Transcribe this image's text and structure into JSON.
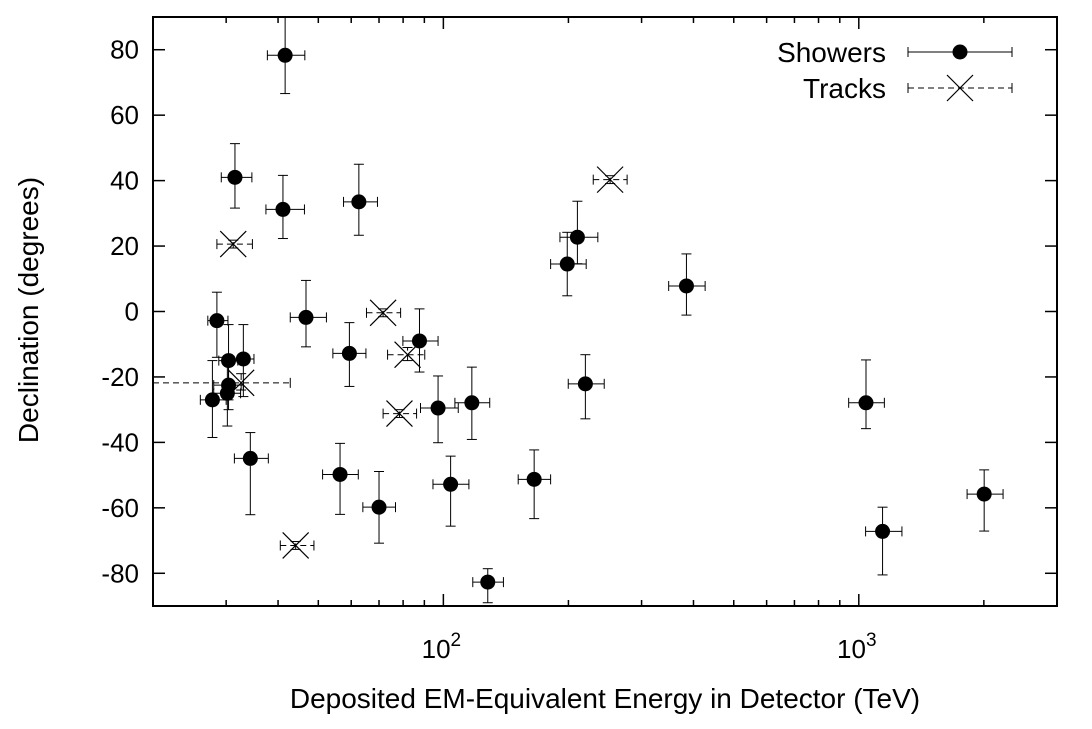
{
  "chart_data": {
    "type": "scatter",
    "title": "",
    "xlabel": "Deposited EM-Equivalent Energy in Detector (TeV)",
    "ylabel": "Declination (degrees)",
    "x_scale": "log",
    "xlim": [
      20,
      3000
    ],
    "ylim": [
      -90,
      90
    ],
    "x_ticks": [
      {
        "value": 100,
        "base": "10",
        "exp": "2"
      },
      {
        "value": 1000,
        "base": "10",
        "exp": "3"
      }
    ],
    "y_ticks": [
      80,
      60,
      40,
      20,
      0,
      -20,
      -40,
      -60,
      -80
    ],
    "y_tick_labels": [
      "80",
      "60",
      "40",
      "20",
      "0",
      "-20",
      "-40",
      "-60",
      "-80"
    ],
    "grid": false,
    "legend_position": "top-right",
    "series": [
      {
        "name": "Showers",
        "marker": "filled-circle",
        "line_style": "solid",
        "color": "#000000",
        "points": [
          {
            "x": 41.6,
            "y": 78.3,
            "xlo": 37.7,
            "xhi": 46.4,
            "ylo": 66.6,
            "yhi": 90.0
          },
          {
            "x": 31.5,
            "y": 41.0,
            "xlo": 29.2,
            "xhi": 34.6,
            "ylo": 31.6,
            "yhi": 51.3
          },
          {
            "x": 41.1,
            "y": 31.2,
            "xlo": 37.4,
            "xhi": 46.3,
            "ylo": 22.3,
            "yhi": 41.6
          },
          {
            "x": 62.6,
            "y": 33.5,
            "xlo": 57.5,
            "xhi": 69.4,
            "ylo": 23.3,
            "yhi": 45.0
          },
          {
            "x": 28.5,
            "y": -2.8,
            "xlo": 27.1,
            "xhi": 30.3,
            "ylo": -14.0,
            "yhi": 5.9
          },
          {
            "x": 46.7,
            "y": -1.8,
            "xlo": 42.8,
            "xhi": 52.3,
            "ylo": -10.8,
            "yhi": 9.5
          },
          {
            "x": 30.4,
            "y": -15.0,
            "xlo": 28.8,
            "xhi": 32.0,
            "ylo": -27.0,
            "yhi": -4.0
          },
          {
            "x": 33.0,
            "y": -14.5,
            "xlo": 31.0,
            "xhi": 35.0,
            "ylo": -26.0,
            "yhi": -4.0
          },
          {
            "x": 59.4,
            "y": -12.8,
            "xlo": 54.2,
            "xhi": 65.1,
            "ylo": -22.9,
            "yhi": -3.4
          },
          {
            "x": 87.6,
            "y": -9.0,
            "xlo": 79.9,
            "xhi": 97.1,
            "ylo": -18.5,
            "yhi": 0.8
          },
          {
            "x": 30.4,
            "y": -22.5,
            "xlo": 28.0,
            "xhi": 33.0,
            "ylo": -30.0,
            "yhi": -15.0
          },
          {
            "x": 27.8,
            "y": -27.0,
            "xlo": 26.0,
            "xhi": 30.0,
            "ylo": -38.5,
            "yhi": -15.0
          },
          {
            "x": 30.2,
            "y": -25.0,
            "xlo": 28.0,
            "xhi": 32.5,
            "ylo": -35.0,
            "yhi": -15.0
          },
          {
            "x": 34.3,
            "y": -44.9,
            "xlo": 31.4,
            "xhi": 37.9,
            "ylo": -62.1,
            "yhi": -37.0
          },
          {
            "x": 56.4,
            "y": -49.8,
            "xlo": 51.2,
            "xhi": 62.4,
            "ylo": -62.0,
            "yhi": -40.3
          },
          {
            "x": 70.0,
            "y": -59.8,
            "xlo": 64.0,
            "xhi": 76.7,
            "ylo": -70.8,
            "yhi": -48.9
          },
          {
            "x": 97.1,
            "y": -29.5,
            "xlo": 88.1,
            "xhi": 108.6,
            "ylo": -40.1,
            "yhi": -19.7
          },
          {
            "x": 117.1,
            "y": -27.9,
            "xlo": 106.6,
            "xhi": 129.3,
            "ylo": -39.1,
            "yhi": -17.0
          },
          {
            "x": 104.1,
            "y": -52.8,
            "xlo": 94.4,
            "xhi": 115.2,
            "ylo": -65.6,
            "yhi": -44.2
          },
          {
            "x": 127.9,
            "y": -82.7,
            "xlo": 117.7,
            "xhi": 139.5,
            "ylo": -89.0,
            "yhi": -78.6
          },
          {
            "x": 165.4,
            "y": -51.3,
            "xlo": 151.4,
            "xhi": 181.2,
            "ylo": -63.3,
            "yhi": -42.3
          },
          {
            "x": 198.7,
            "y": 14.5,
            "xlo": 181.2,
            "xhi": 220.7,
            "ylo": 4.8,
            "yhi": 24.2
          },
          {
            "x": 210.2,
            "y": 22.7,
            "xlo": 190.8,
            "xhi": 235.4,
            "ylo": 14.6,
            "yhi": 33.7
          },
          {
            "x": 219.7,
            "y": -22.1,
            "xlo": 199.8,
            "xhi": 243.9,
            "ylo": -32.8,
            "yhi": -13.2
          },
          {
            "x": 384.7,
            "y": 7.8,
            "xlo": 348.6,
            "xhi": 426.7,
            "ylo": -1.1,
            "yhi": 17.6
          },
          {
            "x": 1040.7,
            "y": -27.9,
            "xlo": 945.4,
            "xhi": 1152.3,
            "ylo": -35.8,
            "yhi": -14.8
          },
          {
            "x": 1140.8,
            "y": -67.2,
            "xlo": 1038.4,
            "xhi": 1270.1,
            "ylo": -80.5,
            "yhi": -59.8
          },
          {
            "x": 2003.6,
            "y": -55.8,
            "xlo": 1822.6,
            "xhi": 2224.9,
            "ylo": -67.1,
            "yhi": -48.4
          }
        ]
      },
      {
        "name": "Tracks",
        "marker": "cross",
        "line_style": "dashed",
        "color": "#000000",
        "points": [
          {
            "x": 31.2,
            "y": 20.6,
            "xlo": 28.5,
            "xhi": 34.7,
            "ylo": 19.4,
            "yhi": 21.8
          },
          {
            "x": 71.6,
            "y": -0.4,
            "xlo": 65.3,
            "xhi": 78.9,
            "ylo": -1.6,
            "yhi": 0.8
          },
          {
            "x": 82.0,
            "y": -13.2,
            "xlo": 73.4,
            "xhi": 90.2,
            "ylo": -15.0,
            "yhi": -11.0
          },
          {
            "x": 78.4,
            "y": -31.2,
            "xlo": 71.6,
            "xhi": 86.2,
            "ylo": -32.4,
            "yhi": -30.0
          },
          {
            "x": 32.6,
            "y": -21.8,
            "xlo": 20.0,
            "xhi": 42.8,
            "ylo": -24.0,
            "yhi": -19.0
          },
          {
            "x": 44.1,
            "y": -71.5,
            "xlo": 40.5,
            "xhi": 48.8,
            "ylo": -72.7,
            "yhi": -70.3
          },
          {
            "x": 252.0,
            "y": 40.3,
            "xlo": 229.5,
            "xhi": 276.9,
            "ylo": 39.1,
            "yhi": 41.5
          }
        ]
      }
    ]
  }
}
